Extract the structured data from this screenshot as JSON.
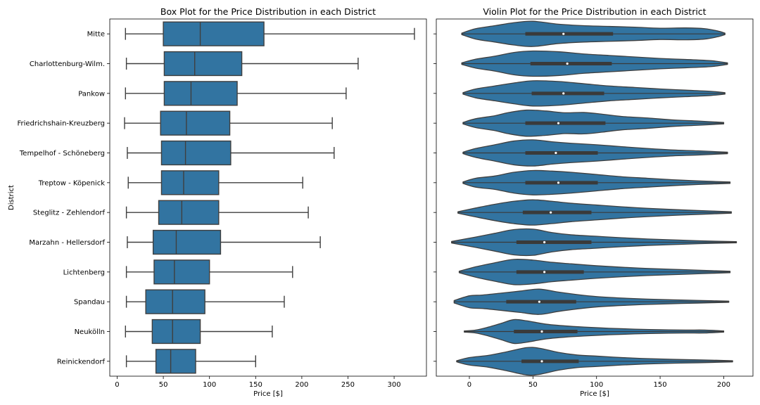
{
  "chart_data": [
    {
      "type": "box",
      "title": "Box Plot for the Price Distribution in each District",
      "xlabel": "Price [$]",
      "ylabel": "District",
      "xlim": [
        -8,
        335
      ],
      "xticks": [
        0,
        50,
        100,
        150,
        200,
        250,
        300
      ],
      "color": "#3274a1",
      "categories": [
        "Mitte",
        "Charlottenburg-Wilm.",
        "Pankow",
        "Friedrichshain-Kreuzberg",
        "Tempelhof - Schöneberg",
        "Treptow - Köpenick",
        "Steglitz - Zehlendorf",
        "Marzahn - Hellersdorf",
        "Lichtenberg",
        "Spandau",
        "Neukölln",
        "Reinickendorf"
      ],
      "series": [
        {
          "category": "Mitte",
          "whislo": 9,
          "q1": 50,
          "med": 90,
          "q3": 159,
          "whishi": 322
        },
        {
          "category": "Charlottenburg-Wilm.",
          "whislo": 10,
          "q1": 51,
          "med": 84,
          "q3": 135,
          "whishi": 261
        },
        {
          "category": "Pankow",
          "whislo": 9,
          "q1": 51,
          "med": 80,
          "q3": 130,
          "whishi": 248
        },
        {
          "category": "Friedrichshain-Kreuzberg",
          "whislo": 8,
          "q1": 47,
          "med": 75,
          "q3": 122,
          "whishi": 233
        },
        {
          "category": "Tempelhof - Schöneberg",
          "whislo": 11,
          "q1": 48,
          "med": 74,
          "q3": 123,
          "whishi": 235
        },
        {
          "category": "Treptow - Köpenick",
          "whislo": 12,
          "q1": 48,
          "med": 72,
          "q3": 110,
          "whishi": 201
        },
        {
          "category": "Steglitz - Zehlendorf",
          "whislo": 10,
          "q1": 45,
          "med": 70,
          "q3": 110,
          "whishi": 207
        },
        {
          "category": "Marzahn - Hellersdorf",
          "whislo": 11,
          "q1": 39,
          "med": 64,
          "q3": 112,
          "whishi": 220
        },
        {
          "category": "Lichtenberg",
          "whislo": 10,
          "q1": 40,
          "med": 62,
          "q3": 100,
          "whishi": 190
        },
        {
          "category": "Spandau",
          "whislo": 10,
          "q1": 31,
          "med": 60,
          "q3": 95,
          "whishi": 181
        },
        {
          "category": "Neukölln",
          "whislo": 9,
          "q1": 38,
          "med": 60,
          "q3": 90,
          "whishi": 168
        },
        {
          "category": "Reinickendorf",
          "whislo": 10,
          "q1": 42,
          "med": 58,
          "q3": 85,
          "whishi": 150
        }
      ]
    },
    {
      "type": "violin",
      "title": "Violin Plot for the Price Distribution in each District",
      "xlabel": "Price [$]",
      "ylabel": "",
      "xlim": [
        -26,
        223
      ],
      "xticks": [
        0,
        50,
        100,
        150,
        200
      ],
      "color": "#3274a1",
      "categories": [
        "Mitte",
        "Charlottenburg-Wilm.",
        "Pankow",
        "Friedrichshain-Kreuzberg",
        "Tempelhof - Schöneberg",
        "Treptow - Köpenick",
        "Steglitz - Zehlendorf",
        "Marzahn - Hellersdorf",
        "Lichtenberg",
        "Spandau",
        "Neukölln",
        "Reinickendorf"
      ],
      "series": [
        {
          "category": "Mitte",
          "min": -6,
          "max": 201,
          "q1": 44,
          "med": 74,
          "q3": 113,
          "profile": [
            [
              -6,
              0.05
            ],
            [
              5,
              0.35
            ],
            [
              20,
              0.55
            ],
            [
              35,
              0.75
            ],
            [
              50,
              0.85
            ],
            [
              70,
              0.65
            ],
            [
              90,
              0.55
            ],
            [
              110,
              0.5
            ],
            [
              130,
              0.45
            ],
            [
              150,
              0.38
            ],
            [
              170,
              0.4
            ],
            [
              185,
              0.35
            ],
            [
              195,
              0.2
            ],
            [
              201,
              0.05
            ]
          ]
        },
        {
          "category": "Charlottenburg-Wilm.",
          "min": -6,
          "max": 203,
          "q1": 48,
          "med": 77,
          "q3": 112,
          "profile": [
            [
              -6,
              0.05
            ],
            [
              5,
              0.3
            ],
            [
              20,
              0.5
            ],
            [
              35,
              0.75
            ],
            [
              50,
              0.85
            ],
            [
              70,
              0.8
            ],
            [
              90,
              0.65
            ],
            [
              110,
              0.55
            ],
            [
              130,
              0.45
            ],
            [
              150,
              0.35
            ],
            [
              170,
              0.28
            ],
            [
              190,
              0.2
            ],
            [
              203,
              0.05
            ]
          ]
        },
        {
          "category": "Pankow",
          "min": -5,
          "max": 201,
          "q1": 49,
          "med": 74,
          "q3": 106,
          "profile": [
            [
              -5,
              0.05
            ],
            [
              5,
              0.3
            ],
            [
              20,
              0.5
            ],
            [
              35,
              0.7
            ],
            [
              50,
              0.85
            ],
            [
              70,
              0.8
            ],
            [
              90,
              0.65
            ],
            [
              110,
              0.5
            ],
            [
              130,
              0.4
            ],
            [
              150,
              0.3
            ],
            [
              170,
              0.22
            ],
            [
              190,
              0.14
            ],
            [
              201,
              0.05
            ]
          ]
        },
        {
          "category": "Friedrichshain-Kreuzberg",
          "min": -5,
          "max": 200,
          "q1": 44,
          "med": 70,
          "q3": 107,
          "profile": [
            [
              -5,
              0.05
            ],
            [
              5,
              0.3
            ],
            [
              20,
              0.5
            ],
            [
              30,
              0.7
            ],
            [
              45,
              0.88
            ],
            [
              60,
              0.82
            ],
            [
              75,
              0.7
            ],
            [
              90,
              0.72
            ],
            [
              105,
              0.6
            ],
            [
              120,
              0.45
            ],
            [
              140,
              0.35
            ],
            [
              160,
              0.22
            ],
            [
              180,
              0.14
            ],
            [
              200,
              0.05
            ]
          ]
        },
        {
          "category": "Tempelhof - Schöneberg",
          "min": -5,
          "max": 203,
          "q1": 44,
          "med": 68,
          "q3": 101,
          "profile": [
            [
              -5,
              0.05
            ],
            [
              5,
              0.3
            ],
            [
              20,
              0.55
            ],
            [
              35,
              0.8
            ],
            [
              50,
              0.88
            ],
            [
              65,
              0.75
            ],
            [
              80,
              0.65
            ],
            [
              100,
              0.55
            ],
            [
              120,
              0.42
            ],
            [
              140,
              0.3
            ],
            [
              160,
              0.2
            ],
            [
              180,
              0.14
            ],
            [
              203,
              0.05
            ]
          ]
        },
        {
          "category": "Treptow - Köpenick",
          "min": -5,
          "max": 205,
          "q1": 44,
          "med": 70,
          "q3": 101,
          "profile": [
            [
              -5,
              0.05
            ],
            [
              5,
              0.3
            ],
            [
              20,
              0.45
            ],
            [
              35,
              0.7
            ],
            [
              50,
              0.82
            ],
            [
              65,
              0.78
            ],
            [
              80,
              0.7
            ],
            [
              100,
              0.55
            ],
            [
              120,
              0.4
            ],
            [
              140,
              0.3
            ],
            [
              160,
              0.2
            ],
            [
              180,
              0.12
            ],
            [
              205,
              0.05
            ]
          ]
        },
        {
          "category": "Steglitz - Zehlendorf",
          "min": -9,
          "max": 206,
          "q1": 42,
          "med": 64,
          "q3": 96,
          "profile": [
            [
              -9,
              0.05
            ],
            [
              5,
              0.3
            ],
            [
              20,
              0.55
            ],
            [
              35,
              0.75
            ],
            [
              50,
              0.85
            ],
            [
              65,
              0.75
            ],
            [
              80,
              0.62
            ],
            [
              100,
              0.5
            ],
            [
              120,
              0.38
            ],
            [
              140,
              0.28
            ],
            [
              160,
              0.2
            ],
            [
              180,
              0.13
            ],
            [
              206,
              0.05
            ]
          ]
        },
        {
          "category": "Marzahn - Hellersdorf",
          "min": -14,
          "max": 210,
          "q1": 37,
          "med": 59,
          "q3": 96,
          "profile": [
            [
              -14,
              0.05
            ],
            [
              5,
              0.35
            ],
            [
              20,
              0.6
            ],
            [
              35,
              0.85
            ],
            [
              50,
              0.88
            ],
            [
              65,
              0.65
            ],
            [
              80,
              0.5
            ],
            [
              100,
              0.4
            ],
            [
              120,
              0.3
            ],
            [
              140,
              0.22
            ],
            [
              160,
              0.16
            ],
            [
              180,
              0.1
            ],
            [
              210,
              0.04
            ]
          ]
        },
        {
          "category": "Lichtenberg",
          "min": -8,
          "max": 205,
          "q1": 37,
          "med": 59,
          "q3": 90,
          "profile": [
            [
              -8,
              0.05
            ],
            [
              5,
              0.35
            ],
            [
              20,
              0.62
            ],
            [
              35,
              0.85
            ],
            [
              50,
              0.8
            ],
            [
              65,
              0.65
            ],
            [
              80,
              0.55
            ],
            [
              100,
              0.42
            ],
            [
              120,
              0.32
            ],
            [
              140,
              0.24
            ],
            [
              160,
              0.18
            ],
            [
              180,
              0.12
            ],
            [
              205,
              0.05
            ]
          ]
        },
        {
          "category": "Spandau",
          "min": -12,
          "max": 204,
          "q1": 29,
          "med": 55,
          "q3": 84,
          "profile": [
            [
              -12,
              0.08
            ],
            [
              0,
              0.4
            ],
            [
              10,
              0.45
            ],
            [
              25,
              0.58
            ],
            [
              40,
              0.72
            ],
            [
              55,
              0.85
            ],
            [
              70,
              0.65
            ],
            [
              85,
              0.48
            ],
            [
              100,
              0.35
            ],
            [
              120,
              0.25
            ],
            [
              140,
              0.18
            ],
            [
              160,
              0.13
            ],
            [
              180,
              0.09
            ],
            [
              204,
              0.04
            ]
          ]
        },
        {
          "category": "Neukölln",
          "min": -4,
          "max": 200,
          "q1": 35,
          "med": 57,
          "q3": 85,
          "profile": [
            [
              -4,
              0.04
            ],
            [
              5,
              0.1
            ],
            [
              15,
              0.3
            ],
            [
              25,
              0.55
            ],
            [
              35,
              0.8
            ],
            [
              45,
              0.72
            ],
            [
              60,
              0.5
            ],
            [
              75,
              0.38
            ],
            [
              90,
              0.3
            ],
            [
              110,
              0.22
            ],
            [
              130,
              0.16
            ],
            [
              150,
              0.12
            ],
            [
              170,
              0.1
            ],
            [
              185,
              0.1
            ],
            [
              200,
              0.04
            ]
          ]
        },
        {
          "category": "Reinickendorf",
          "min": -10,
          "max": 207,
          "q1": 41,
          "med": 57,
          "q3": 86,
          "profile": [
            [
              -10,
              0.04
            ],
            [
              0,
              0.25
            ],
            [
              15,
              0.4
            ],
            [
              30,
              0.65
            ],
            [
              45,
              0.92
            ],
            [
              55,
              0.88
            ],
            [
              70,
              0.6
            ],
            [
              85,
              0.42
            ],
            [
              100,
              0.35
            ],
            [
              120,
              0.25
            ],
            [
              140,
              0.18
            ],
            [
              160,
              0.13
            ],
            [
              180,
              0.1
            ],
            [
              207,
              0.04
            ]
          ]
        }
      ]
    }
  ]
}
